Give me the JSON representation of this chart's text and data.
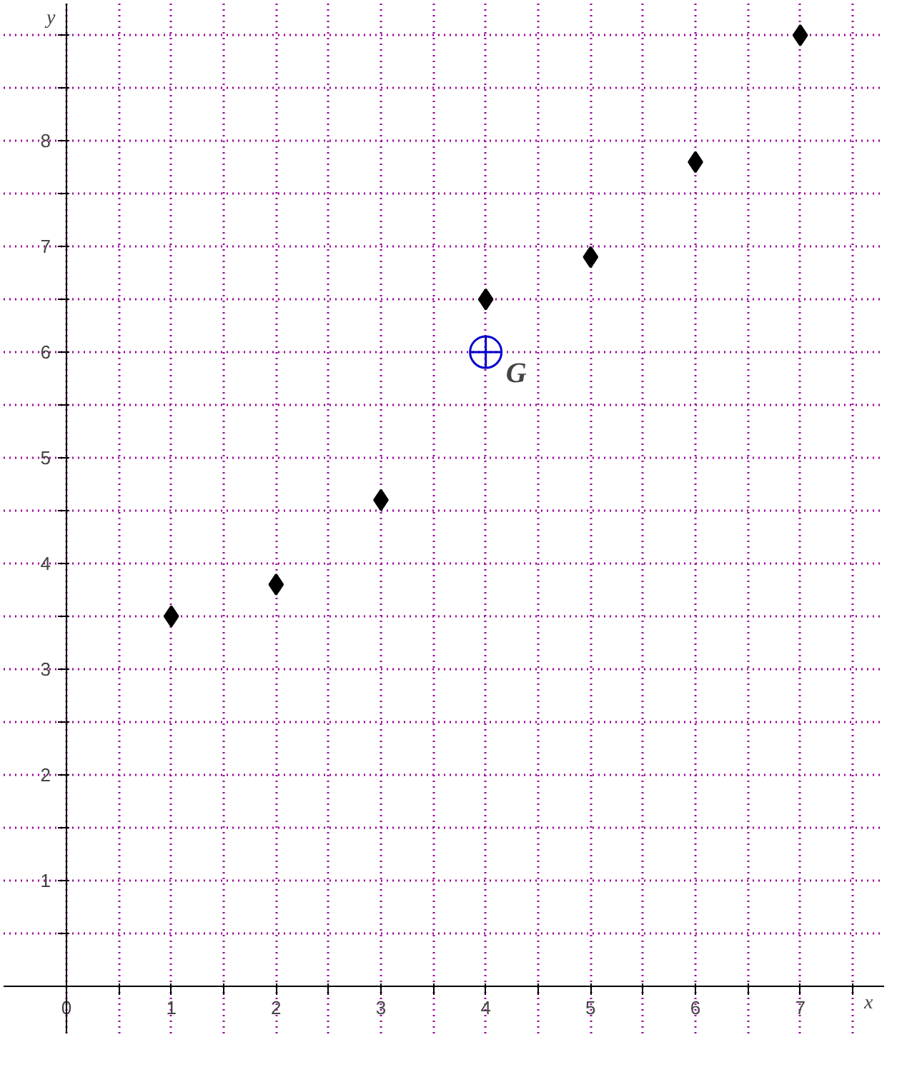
{
  "chart_data": {
    "type": "scatter",
    "xlabel": "x",
    "ylabel": "y",
    "xlim": [
      -0.6,
      7.8
    ],
    "ylim": [
      -0.45,
      9.3
    ],
    "xticks": [
      0,
      {
        "value": 0.5,
        "label": null
      },
      1,
      {
        "value": 1.5,
        "label": null
      },
      2,
      {
        "value": 2.5,
        "label": null
      },
      3,
      {
        "value": 3.5,
        "label": null
      },
      4,
      {
        "value": 4.5,
        "label": null
      },
      5,
      {
        "value": 5.5,
        "label": null
      },
      6,
      {
        "value": 6.5,
        "label": null
      },
      7,
      {
        "value": 7.5,
        "label": null
      }
    ],
    "yticks": [
      {
        "value": 0.5,
        "label": null
      },
      1,
      {
        "value": 1.5,
        "label": null
      },
      2,
      {
        "value": 2.5,
        "label": null
      },
      3,
      {
        "value": 3.5,
        "label": null
      },
      4,
      {
        "value": 4.5,
        "label": null
      },
      5,
      {
        "value": 5.5,
        "label": null
      },
      6,
      {
        "value": 6.5,
        "label": null
      },
      7,
      {
        "value": 7.5,
        "label": null
      },
      8,
      {
        "value": 8.5,
        "label": null
      },
      {
        "value": 9,
        "label": null
      }
    ],
    "grid": true,
    "series": [
      {
        "marker": "diamond",
        "color": "#000000",
        "x": [
          1,
          2,
          3,
          4,
          5,
          6,
          7
        ],
        "values": [
          3.5,
          3.8,
          4.6,
          6.5,
          6.9,
          7.8,
          9
        ]
      },
      {
        "marker": "circle",
        "color": "#0000cc",
        "x": [
          4
        ],
        "values": [
          6
        ]
      }
    ],
    "annotations": [
      {
        "text": "G",
        "x": 4,
        "y": 6
      }
    ]
  }
}
